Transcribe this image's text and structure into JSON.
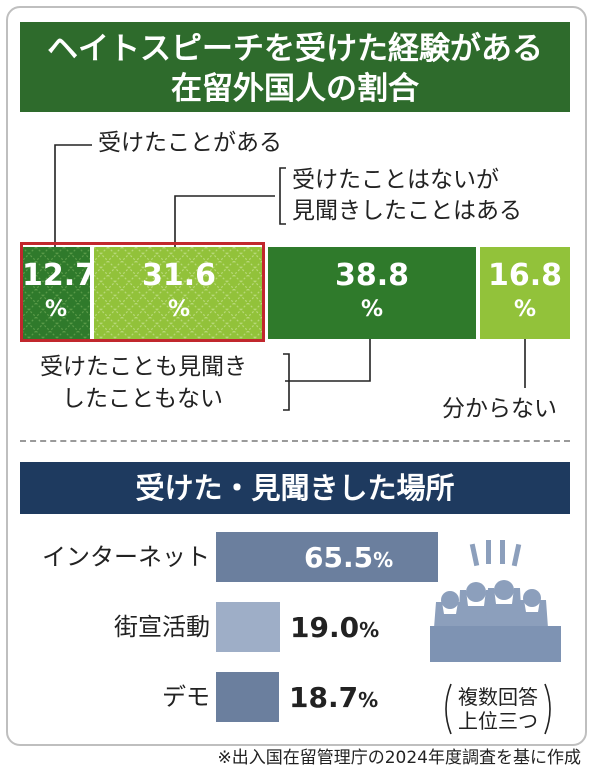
{
  "title": {
    "line1": "ヘイトスピーチを受けた経験がある",
    "line2": "在留外国人の割合"
  },
  "callouts": {
    "received": "受けたことがある",
    "not_received_line1": "受けたことはないが",
    "not_received_line2": "見聞きしたことはある",
    "neither_line1": "受けたことも見聞き",
    "neither_line2": "したこともない",
    "unknown": "分からない"
  },
  "percent_sign": "%",
  "chart_data": [
    {
      "type": "bar",
      "categories": [
        "受けたことがある",
        "受けたことはないが見聞きしたことはある",
        "受けたことも見聞きしたこともない",
        "分からない"
      ],
      "values": [
        12.7,
        31.6,
        38.8,
        16.8
      ],
      "value_labels": [
        "12.7",
        "31.6",
        "38.8",
        "16.8"
      ],
      "colors": [
        "#2f7a2b",
        "#92c23a",
        "#2f7a2b",
        "#92c23a"
      ],
      "stacked": true,
      "unit": "%"
    },
    {
      "type": "bar",
      "title": "受けた・見聞きした場所",
      "categories": [
        "インターネット",
        "街宣活動",
        "デモ"
      ],
      "values": [
        65.5,
        19.0,
        18.7
      ],
      "value_labels": [
        "65.5",
        "19.0",
        "18.7"
      ],
      "colors": [
        "#6b7f9e",
        "#9eaec7",
        "#6b7f9e"
      ],
      "orientation": "horizontal",
      "unit": "%"
    }
  ],
  "note": {
    "line1": "複数回答",
    "line2": "上位三つ"
  },
  "footer": "※出入国在留管理庁の2024年度調査を基に作成"
}
